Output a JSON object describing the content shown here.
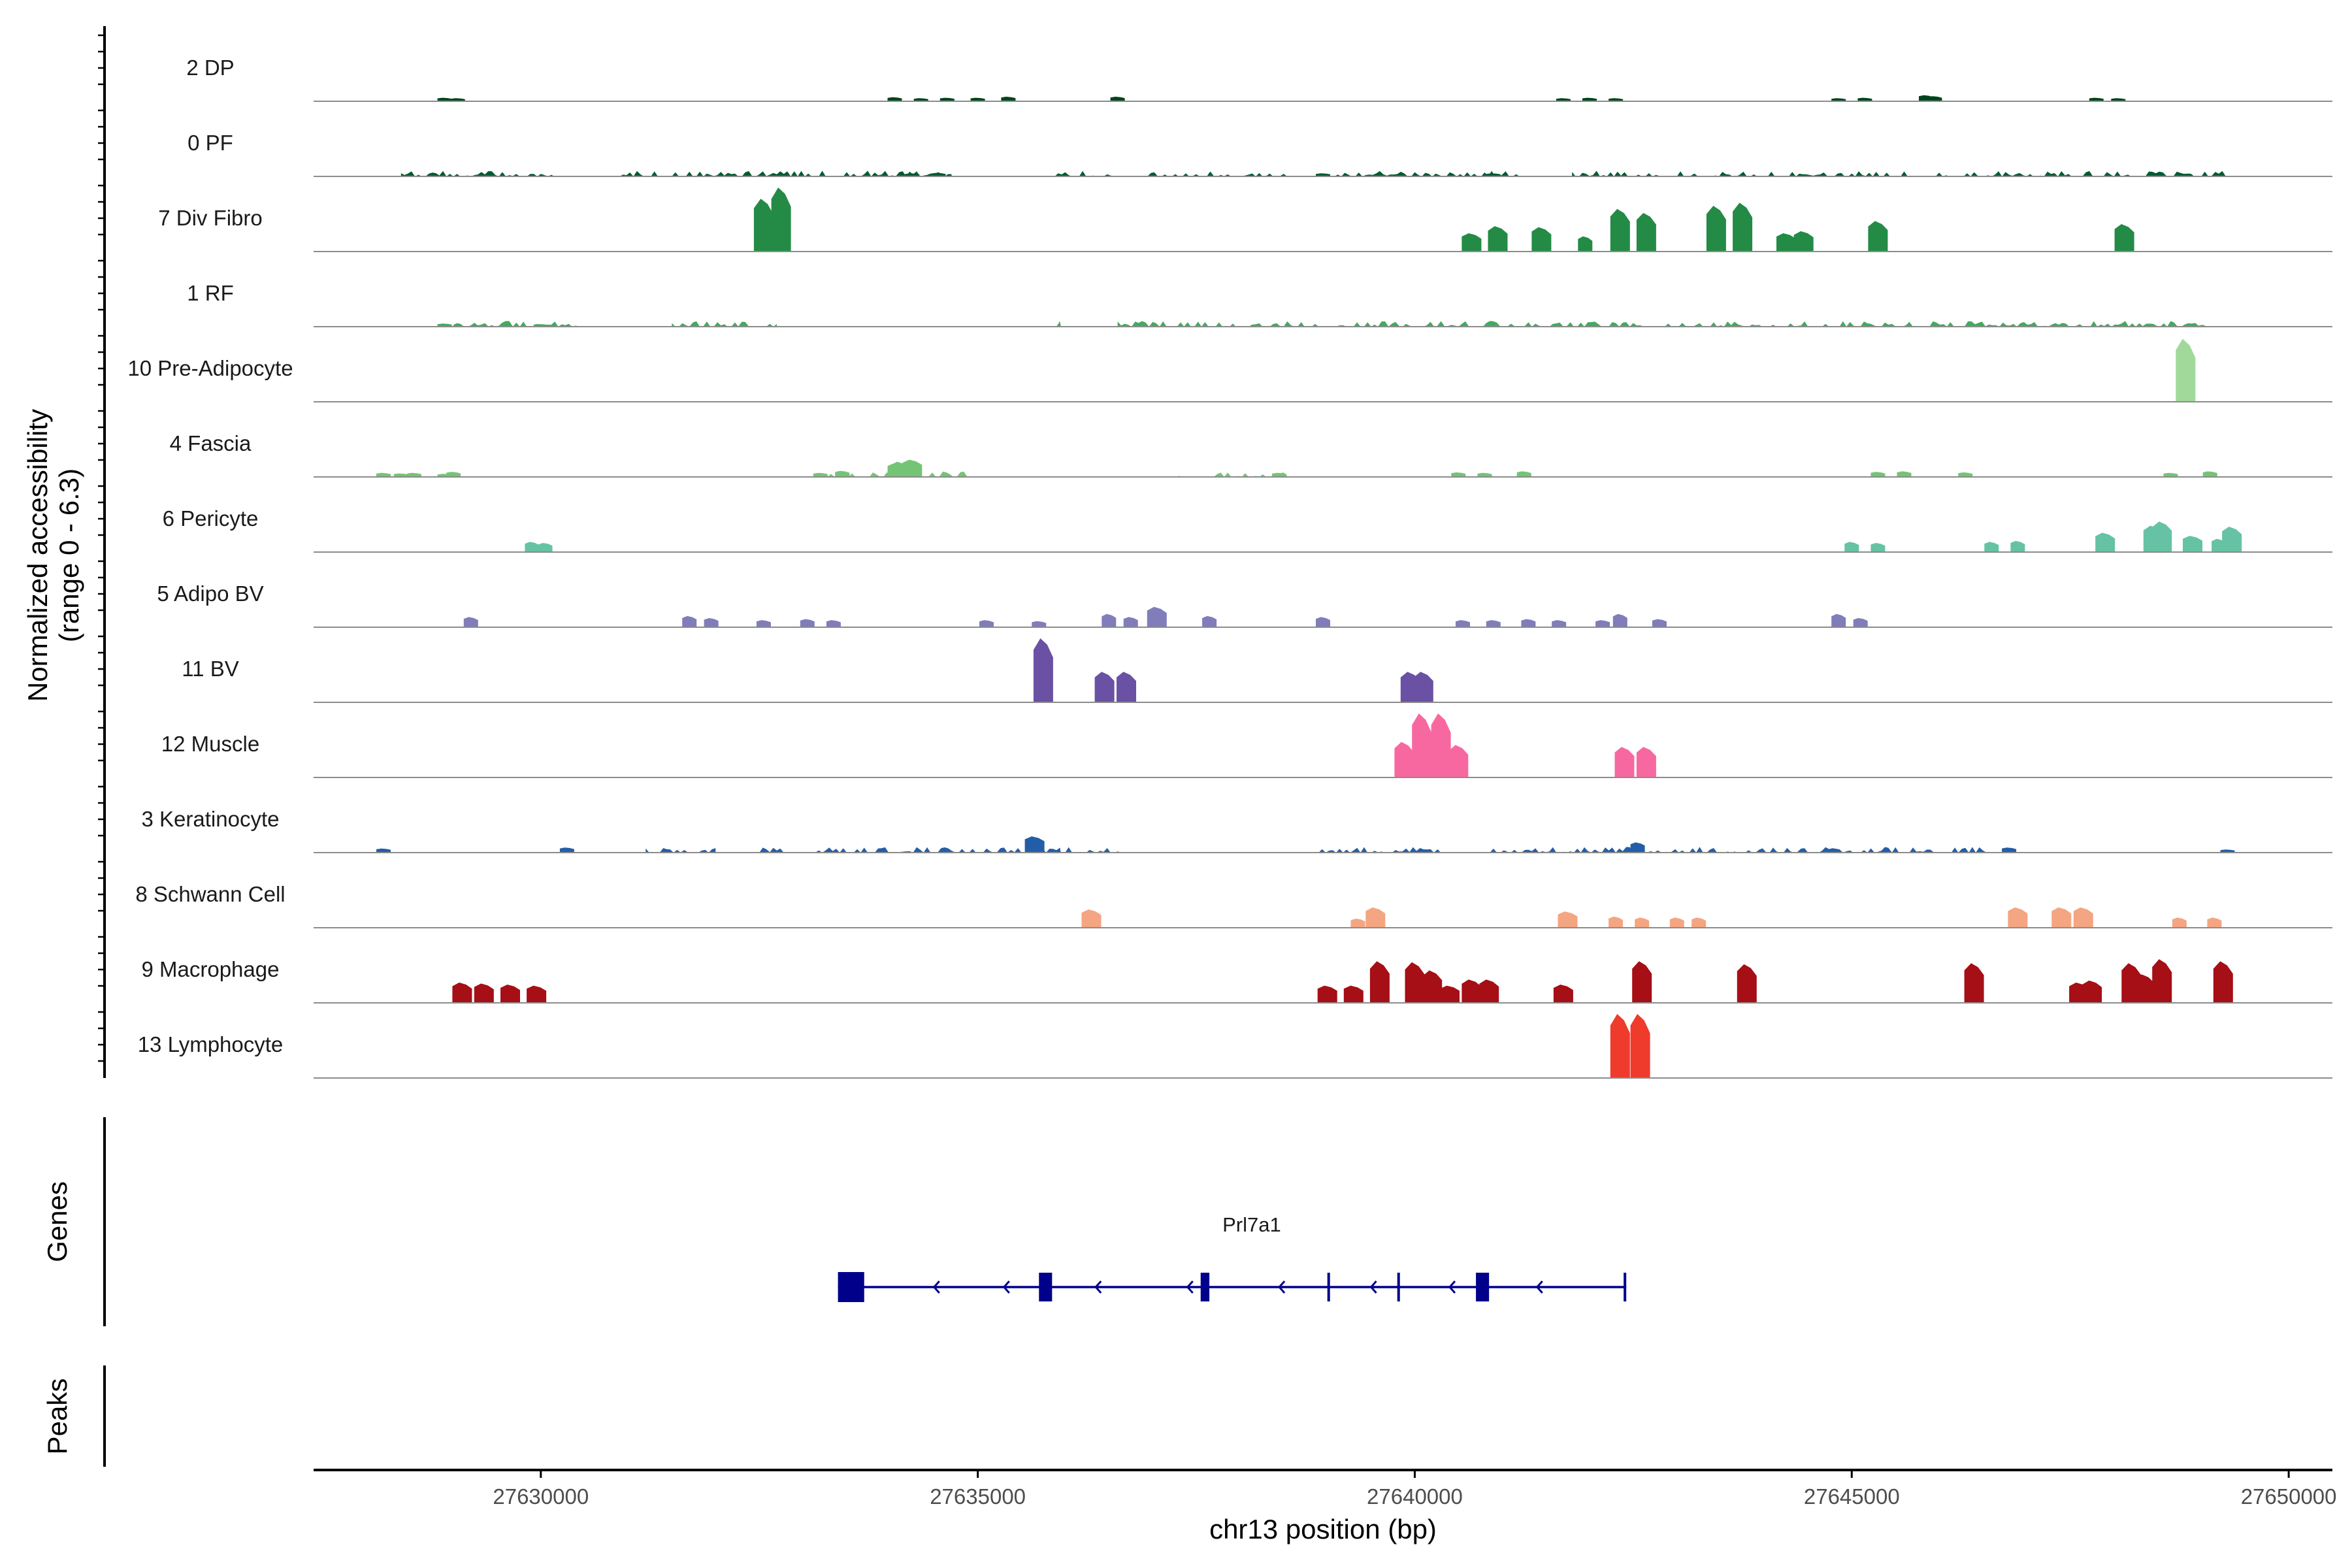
{
  "chart_data": {
    "type": "area",
    "title": "",
    "ylabel": "Normalized accessibility",
    "ylabel_range": "(range 0 - 6.3)",
    "xlabel": "chr13 position (bp)",
    "xlim": [
      27627400,
      27650500
    ],
    "x_ticks": [
      27630000,
      27635000,
      27640000,
      27645000,
      27650000
    ],
    "x_tick_labels": [
      "27630000",
      "27635000",
      "27640000",
      "27645000",
      "27650000"
    ],
    "y_range": [
      0,
      6.3
    ],
    "tracks": [
      {
        "name": "2 DP",
        "color": "#00441b",
        "peaks": [
          [
            27628900,
            0.35
          ],
          [
            27629050,
            0.3
          ],
          [
            27634050,
            0.4
          ],
          [
            27634350,
            0.3
          ],
          [
            27634650,
            0.35
          ],
          [
            27635000,
            0.35
          ],
          [
            27635350,
            0.45
          ],
          [
            27636600,
            0.45
          ],
          [
            27641700,
            0.3
          ],
          [
            27642000,
            0.35
          ],
          [
            27642300,
            0.3
          ],
          [
            27644850,
            0.3
          ],
          [
            27645150,
            0.35
          ],
          [
            27645850,
            0.6
          ],
          [
            27645950,
            0.5
          ],
          [
            27647800,
            0.35
          ],
          [
            27648050,
            0.3
          ]
        ],
        "noise": []
      },
      {
        "name": "0 PF",
        "color": "#005a32",
        "peaks": [
          [
            27634250,
            0.3
          ],
          [
            27634550,
            0.35
          ],
          [
            27638950,
            0.3
          ],
          [
            27640900,
            0.3
          ]
        ],
        "noise": [
          [
            27628400,
            27630400
          ],
          [
            27630900,
            27634700
          ],
          [
            27635800,
            27636600
          ],
          [
            27636900,
            27638600
          ],
          [
            27638800,
            27641200
          ],
          [
            27641800,
            27649300
          ]
        ]
      },
      {
        "name": "7 Div Fibro",
        "color": "#238b45",
        "peaks": [
          [
            27632550,
            5.2
          ],
          [
            27632750,
            6.3
          ],
          [
            27640650,
            1.8
          ],
          [
            27640950,
            2.5
          ],
          [
            27641450,
            2.4
          ],
          [
            27641950,
            1.5
          ],
          [
            27642350,
            4.2
          ],
          [
            27642650,
            3.8
          ],
          [
            27643450,
            4.5
          ],
          [
            27643750,
            4.8
          ],
          [
            27644250,
            1.8
          ],
          [
            27644450,
            2.0
          ],
          [
            27645300,
            3.0
          ],
          [
            27648120,
            2.7
          ]
        ],
        "noise": []
      },
      {
        "name": "1 RF",
        "color": "#41ab5d",
        "peaks": [
          [
            27628900,
            0.3
          ],
          [
            27630000,
            0.25
          ]
        ],
        "noise": [
          [
            27629000,
            27630500
          ],
          [
            27631500,
            27632700
          ],
          [
            27635700,
            27635950
          ],
          [
            27636600,
            27637950
          ],
          [
            27638100,
            27645700
          ],
          [
            27645850,
            27649200
          ]
        ]
      },
      {
        "name": "10 Pre-Adipocyte",
        "color": "#a1d99b",
        "peaks": [
          [
            27648820,
            6.2
          ]
        ],
        "noise": []
      },
      {
        "name": "4 Fascia",
        "color": "#74c476",
        "peaks": [
          [
            27628200,
            0.4
          ],
          [
            27628400,
            0.35
          ],
          [
            27628550,
            0.4
          ],
          [
            27628900,
            0.3
          ],
          [
            27629000,
            0.5
          ],
          [
            27634050,
            1.3
          ],
          [
            27634100,
            1.5
          ],
          [
            27634250,
            1.7
          ],
          [
            27633200,
            0.4
          ],
          [
            27633450,
            0.6
          ],
          [
            27638450,
            0.4
          ],
          [
            27640500,
            0.45
          ],
          [
            27640800,
            0.4
          ],
          [
            27641250,
            0.55
          ],
          [
            27645300,
            0.5
          ],
          [
            27645600,
            0.55
          ],
          [
            27646300,
            0.45
          ],
          [
            27648650,
            0.4
          ],
          [
            27649100,
            0.55
          ]
        ],
        "noise": [
          [
            27633200,
            27634900
          ],
          [
            27637300,
            27638650
          ]
        ]
      },
      {
        "name": "6 Pericyte",
        "color": "#66c2a4",
        "peaks": [
          [
            27629900,
            1.0
          ],
          [
            27630050,
            0.9
          ],
          [
            27645000,
            1.0
          ],
          [
            27645300,
            0.9
          ],
          [
            27646600,
            1.0
          ],
          [
            27646900,
            1.1
          ],
          [
            27647900,
            1.9
          ],
          [
            27648450,
            2.6
          ],
          [
            27648550,
            3.0
          ],
          [
            27648900,
            1.6
          ],
          [
            27649200,
            1.3
          ],
          [
            27649350,
            2.5
          ]
        ],
        "noise": []
      },
      {
        "name": "5 Adipo BV",
        "color": "#807dba",
        "peaks": [
          [
            27629200,
            1.0
          ],
          [
            27631700,
            1.1
          ],
          [
            27631950,
            0.9
          ],
          [
            27632550,
            0.7
          ],
          [
            27633050,
            0.8
          ],
          [
            27633350,
            0.7
          ],
          [
            27635100,
            0.7
          ],
          [
            27635700,
            0.6
          ],
          [
            27636500,
            1.3
          ],
          [
            27636750,
            1.0
          ],
          [
            27637050,
            2.0
          ],
          [
            27637650,
            1.1
          ],
          [
            27638950,
            1.0
          ],
          [
            27640550,
            0.7
          ],
          [
            27640900,
            0.7
          ],
          [
            27641300,
            0.8
          ],
          [
            27641650,
            0.7
          ],
          [
            27642150,
            0.7
          ],
          [
            27642350,
            1.3
          ],
          [
            27642800,
            0.8
          ],
          [
            27644850,
            1.3
          ],
          [
            27645100,
            0.9
          ]
        ],
        "noise": []
      },
      {
        "name": "11 BV",
        "color": "#6a51a3",
        "peaks": [
          [
            27635750,
            6.3
          ],
          [
            27636450,
            3.0
          ],
          [
            27636700,
            3.0
          ],
          [
            27639950,
            3.0
          ],
          [
            27640100,
            3.0
          ]
        ],
        "noise": []
      },
      {
        "name": "12 Muscle",
        "color": "#f768a1",
        "peaks": [
          [
            27639880,
            3.5
          ],
          [
            27640080,
            6.3
          ],
          [
            27640300,
            6.3
          ],
          [
            27640500,
            3.2
          ],
          [
            27642400,
            3.0
          ],
          [
            27642650,
            3.0
          ]
        ],
        "noise": []
      },
      {
        "name": "3 Keratinocyte",
        "color": "#225ea8",
        "peaks": [
          [
            27628200,
            0.4
          ],
          [
            27630300,
            0.5
          ],
          [
            27635650,
            1.6
          ],
          [
            27642550,
            1.0
          ],
          [
            27646800,
            0.5
          ],
          [
            27649300,
            0.3
          ]
        ],
        "noise": [
          [
            27631200,
            27632000
          ],
          [
            27632500,
            27632800
          ],
          [
            27633100,
            27635950
          ],
          [
            27636000,
            27636700
          ],
          [
            27638900,
            27640300
          ],
          [
            27640700,
            27646700
          ]
        ]
      },
      {
        "name": "8 Schwann Cell",
        "color": "#f4a582",
        "peaks": [
          [
            27636300,
            1.8
          ],
          [
            27639350,
            0.9
          ],
          [
            27639550,
            2.0
          ],
          [
            27641750,
            1.6
          ],
          [
            27642300,
            1.1
          ],
          [
            27642600,
            1.0
          ],
          [
            27643000,
            1.0
          ],
          [
            27643250,
            1.0
          ],
          [
            27646900,
            2.0
          ],
          [
            27647400,
            2.0
          ],
          [
            27647650,
            2.0
          ],
          [
            27648750,
            1.0
          ],
          [
            27649150,
            1.0
          ]
        ],
        "noise": []
      },
      {
        "name": "9 Macrophage",
        "color": "#a50f15",
        "peaks": [
          [
            27629100,
            2.0
          ],
          [
            27629350,
            1.9
          ],
          [
            27629650,
            1.8
          ],
          [
            27629950,
            1.7
          ],
          [
            27639000,
            1.7
          ],
          [
            27639300,
            1.7
          ],
          [
            27639600,
            4.1
          ],
          [
            27640200,
            3.2
          ],
          [
            27640000,
            4.0
          ],
          [
            27640400,
            1.7
          ],
          [
            27640650,
            2.3
          ],
          [
            27640850,
            2.3
          ],
          [
            27641700,
            1.8
          ],
          [
            27642600,
            4.1
          ],
          [
            27643800,
            3.8
          ],
          [
            27646400,
            3.9
          ],
          [
            27647600,
            2.0
          ],
          [
            27647750,
            2.2
          ],
          [
            27648200,
            3.9
          ],
          [
            27648350,
            2.8
          ],
          [
            27648550,
            4.3
          ],
          [
            27649250,
            4.1
          ]
        ],
        "noise": []
      },
      {
        "name": "13 Lymphocyte",
        "color": "#ef3b2c",
        "peaks": [
          [
            27642350,
            6.3
          ],
          [
            27642580,
            6.3
          ]
        ],
        "noise": []
      }
    ],
    "genes": [
      {
        "name": "Prl7a1",
        "strand": "-",
        "start": 27633400,
        "end": 27642420,
        "exons": [
          [
            27633400,
            27633700
          ],
          [
            27635700,
            27635850
          ],
          [
            27637550,
            27637650
          ],
          [
            27639000,
            27639030
          ],
          [
            27639800,
            27639830
          ],
          [
            27640700,
            27640850
          ],
          [
            27642390,
            27642420
          ]
        ],
        "arrows": [
          27634500,
          27635300,
          27636350,
          27637400,
          27638450,
          27639500,
          27640400,
          27641400
        ]
      }
    ],
    "panels": {
      "genes": "Genes",
      "peaks": "Peaks"
    }
  },
  "colors": {
    "gene": "#00008b",
    "baseline": "#8c8c8c",
    "axis": "#000000"
  }
}
